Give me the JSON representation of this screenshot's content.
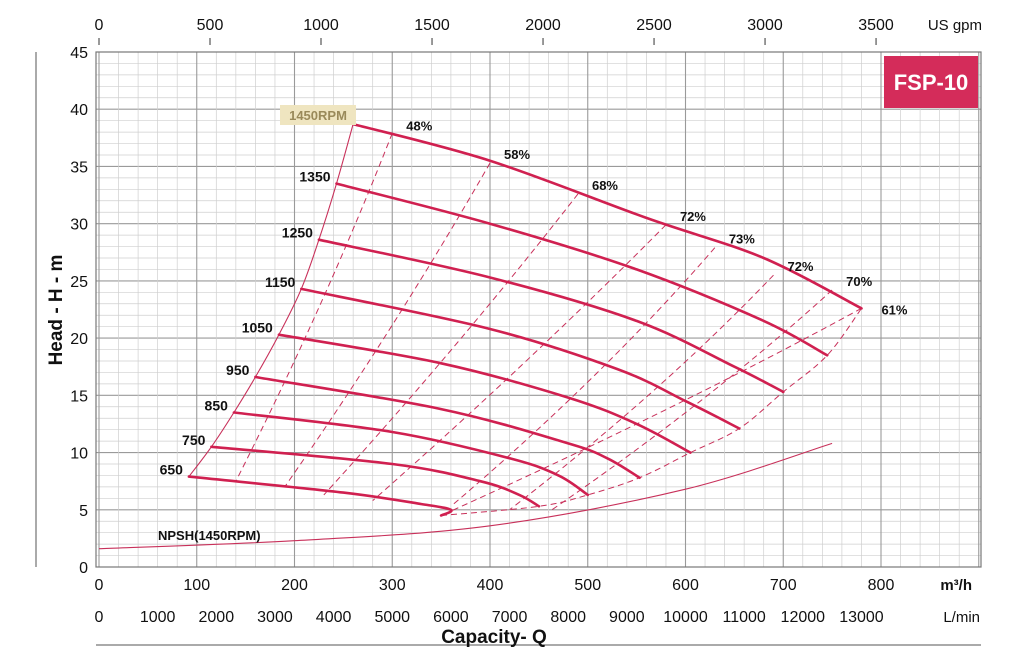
{
  "colors": {
    "curve": "#d02050",
    "thin": "#c8305a",
    "grid_major": "#9a9a9a",
    "grid_minor": "#cfcfcf",
    "badge": "#d42c5a",
    "rated_bg": "#efe5c0"
  },
  "chart_data": {
    "type": "line",
    "title": "FSP-10",
    "xlabel": "Capacity- Q",
    "ylabel": "Head - H - m",
    "xlim": [
      0,
      870
    ],
    "ylim": [
      0,
      45
    ],
    "x_unit_primary": "m³/h",
    "x_unit_top": "US gpm",
    "x_unit_bottom": "L/min",
    "x_ticks_m3h": [
      "0",
      "100",
      "200",
      "300",
      "400",
      "500",
      "600",
      "700",
      "800"
    ],
    "x_ticks_gpm": [
      "0",
      "500",
      "1000",
      "1500",
      "2000",
      "2500",
      "3000",
      "3500"
    ],
    "x_ticks_lmin": [
      "0",
      "1000",
      "2000",
      "3000",
      "4000",
      "5000",
      "6000",
      "7000",
      "8000",
      "9000",
      "10000",
      "11000",
      "12000",
      "13000"
    ],
    "y_ticks": [
      "0",
      "5",
      "10",
      "15",
      "20",
      "25",
      "30",
      "35",
      "40",
      "45"
    ],
    "rated_speed_label": "1450RPM",
    "series": [
      {
        "name": "1450RPM",
        "label": "",
        "x": [
          260,
          400,
          560,
          680,
          780
        ],
        "y": [
          38.7,
          35.5,
          30.5,
          27.0,
          22.6
        ]
      },
      {
        "name": "1350",
        "label": "1350",
        "x": [
          243,
          400,
          550,
          680,
          745
        ],
        "y": [
          33.5,
          30.0,
          26.0,
          21.5,
          18.5
        ]
      },
      {
        "name": "1250",
        "label": "1250",
        "x": [
          225,
          400,
          550,
          650,
          700
        ],
        "y": [
          28.6,
          25.3,
          21.5,
          17.5,
          15.3
        ]
      },
      {
        "name": "1150",
        "label": "1150",
        "x": [
          207,
          400,
          530,
          600,
          655
        ],
        "y": [
          24.3,
          20.8,
          17.3,
          14.5,
          12.1
        ]
      },
      {
        "name": "1050",
        "label": "1050",
        "x": [
          184,
          350,
          480,
          550,
          605
        ],
        "y": [
          20.3,
          17.8,
          14.8,
          12.5,
          10.0
        ]
      },
      {
        "name": "950",
        "label": "950",
        "x": [
          160,
          350,
          480,
          520,
          553
        ],
        "y": [
          16.6,
          13.8,
          10.8,
          9.5,
          7.8
        ]
      },
      {
        "name": "850",
        "label": "850",
        "x": [
          138,
          300,
          420,
          470,
          500
        ],
        "y": [
          13.5,
          11.8,
          9.5,
          8.0,
          6.3
        ]
      },
      {
        "name": "750",
        "label": "750",
        "x": [
          115,
          300,
          390,
          430,
          450
        ],
        "y": [
          10.5,
          9.0,
          7.5,
          6.3,
          5.3
        ]
      },
      {
        "name": "650",
        "label": "650",
        "x": [
          92,
          250,
          330,
          360,
          350
        ],
        "y": [
          7.9,
          6.5,
          5.5,
          5.0,
          4.5
        ]
      }
    ],
    "npsh": {
      "label": "NPSH(1450RPM)",
      "x": [
        0,
        200,
        400,
        600,
        750
      ],
      "y": [
        1.6,
        2.3,
        3.6,
        6.8,
        10.8
      ]
    },
    "envelope_left": {
      "x": [
        92,
        115,
        138,
        160,
        184,
        207,
        225,
        243,
        260
      ],
      "y": [
        7.9,
        10.5,
        13.5,
        16.6,
        20.3,
        24.3,
        28.6,
        33.5,
        38.7
      ]
    },
    "envelope_right": {
      "x": [
        350,
        450,
        500,
        553,
        605,
        655,
        700,
        745,
        780
      ],
      "y": [
        4.5,
        5.3,
        6.3,
        7.8,
        10.0,
        12.1,
        15.3,
        18.5,
        22.6
      ]
    },
    "efficiency": [
      {
        "label": "48%",
        "top": [
          300,
          37.9
        ],
        "bottom": [
          140,
          7.5
        ]
      },
      {
        "label": "58%",
        "top": [
          400,
          35.3
        ],
        "bottom": [
          190,
          7.0
        ]
      },
      {
        "label": "68%",
        "top": [
          490,
          32.6
        ],
        "bottom": [
          230,
          6.3
        ]
      },
      {
        "label": "72%",
        "top": [
          580,
          29.9
        ],
        "bottom": [
          280,
          5.8
        ]
      },
      {
        "label": "73%",
        "top": [
          630,
          27.9
        ],
        "bottom": [
          360,
          5.3
        ]
      },
      {
        "label": "72%",
        "top": [
          690,
          25.5
        ],
        "bottom": [
          420,
          5.0
        ]
      },
      {
        "label": "70%",
        "top": [
          750,
          24.2
        ],
        "bottom": [
          460,
          4.8
        ]
      },
      {
        "label": "61%",
        "top": [
          780,
          22.6
        ],
        "bottom": [
          350,
          4.5
        ]
      }
    ]
  }
}
